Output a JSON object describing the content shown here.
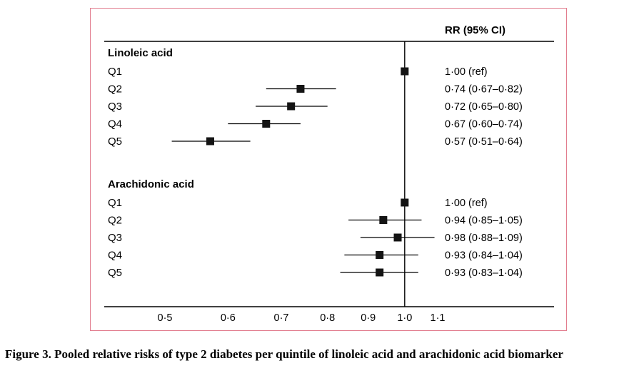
{
  "figure": {
    "caption": "Figure 3. Pooled relative risks of type 2 diabetes per quintile of linoleic acid and arachidonic acid biomarker"
  },
  "chart_data": {
    "type": "forest",
    "column_header": "RR (95% CI)",
    "x_axis": {
      "scale": "log",
      "min": 0.5,
      "max": 1.1,
      "reference_line": 1.0,
      "ticks": [
        0.5,
        0.6,
        0.7,
        0.8,
        0.9,
        1.0,
        1.1
      ],
      "tick_labels": [
        "0·5",
        "0·6",
        "0·7",
        "0·8",
        "0·9",
        "1·0",
        "1·1"
      ]
    },
    "groups": [
      {
        "label": "Linoleic acid",
        "rows": [
          {
            "label": "Q1",
            "rr": 1.0,
            "ci_low": null,
            "ci_high": null,
            "text": "1·00 (ref)"
          },
          {
            "label": "Q2",
            "rr": 0.74,
            "ci_low": 0.67,
            "ci_high": 0.82,
            "text": "0·74 (0·67–0·82)"
          },
          {
            "label": "Q3",
            "rr": 0.72,
            "ci_low": 0.65,
            "ci_high": 0.8,
            "text": "0·72 (0·65–0·80)"
          },
          {
            "label": "Q4",
            "rr": 0.67,
            "ci_low": 0.6,
            "ci_high": 0.74,
            "text": "0·67 (0·60–0·74)"
          },
          {
            "label": "Q5",
            "rr": 0.57,
            "ci_low": 0.51,
            "ci_high": 0.64,
            "text": "0·57 (0·51–0·64)"
          }
        ]
      },
      {
        "label": "Arachidonic acid",
        "rows": [
          {
            "label": "Q1",
            "rr": 1.0,
            "ci_low": null,
            "ci_high": null,
            "text": "1·00 (ref)"
          },
          {
            "label": "Q2",
            "rr": 0.94,
            "ci_low": 0.85,
            "ci_high": 1.05,
            "text": "0·94 (0·85–1·05)"
          },
          {
            "label": "Q3",
            "rr": 0.98,
            "ci_low": 0.88,
            "ci_high": 1.09,
            "text": "0·98 (0·88–1·09)"
          },
          {
            "label": "Q4",
            "rr": 0.93,
            "ci_low": 0.84,
            "ci_high": 1.04,
            "text": "0·93 (0·84–1·04)"
          },
          {
            "label": "Q5",
            "rr": 0.93,
            "ci_low": 0.83,
            "ci_high": 1.04,
            "text": "0·93 (0·83–1·04)"
          }
        ]
      }
    ],
    "colors": {
      "marker": "#141414",
      "line": "#000000",
      "border": "#e27d8e",
      "text": "#000000"
    }
  }
}
